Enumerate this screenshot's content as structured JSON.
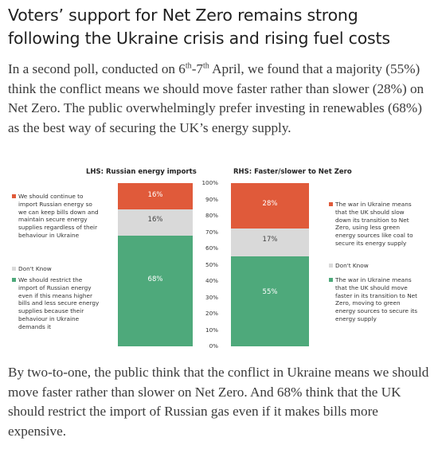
{
  "headline": "Voters’ support for Net Zero remains strong following the Ukraine crisis and rising fuel costs",
  "para1": {
    "part1": "In a second poll, conducted on 6",
    "sup1": "th",
    "part2": "-7",
    "sup2": "th",
    "part3": " April, we found that a majority (55%) think the conflict means we should move faster rather than slower (28%) on Net Zero. The public overwhelmingly prefer investing in renewables (68%) as the best way of securing the UK’s energy supply."
  },
  "para2": "By two-to-one, the public think that the conflict in Ukraine means we should move faster rather than slower on Net Zero. And 68% think that the UK should restrict the import of Russian gas even if it makes bills more expensive.",
  "colors": {
    "orange": "#e05a3a",
    "grey": "#d9d9d9",
    "green": "#4ea97b"
  },
  "chart_data": [
    {
      "type": "bar",
      "title": "LHS: Russian energy imports",
      "series": [
        {
          "name": "We should continue to import Russian energy so we can keep bills down and maintain secure energy supplies regardless of their behaviour in Ukraine",
          "value": 16,
          "label": "16%",
          "color": "#e05a3a"
        },
        {
          "name": "Don't Know",
          "value": 16,
          "label": "16%",
          "color": "#d9d9d9"
        },
        {
          "name": "We should restrict the import of Russian energy even if this means higher bills and less secure energy supplies because their behaviour in Ukraine demands it",
          "value": 68,
          "label": "68%",
          "color": "#4ea97b"
        }
      ]
    },
    {
      "type": "bar",
      "title": "RHS: Faster/slower to Net Zero",
      "ylim": [
        0,
        100
      ],
      "yticks": [
        "100%",
        "90%",
        "80%",
        "70%",
        "60%",
        "50%",
        "40%",
        "30%",
        "20%",
        "10%",
        "0%"
      ],
      "series": [
        {
          "name": "The war in Ukraine means that the UK should slow down its transition to Net Zero, using less green energy sources like coal to secure its energy supply",
          "value": 28,
          "label": "28%",
          "color": "#e05a3a"
        },
        {
          "name": "Don't Know",
          "value": 17,
          "label": "17%",
          "color": "#d9d9d9"
        },
        {
          "name": "The war in Ukraine means that the UK should move faster in its transition to Net Zero, moving to green energy sources to secure its energy supply",
          "value": 55,
          "label": "55%",
          "color": "#4ea97b"
        }
      ]
    }
  ]
}
